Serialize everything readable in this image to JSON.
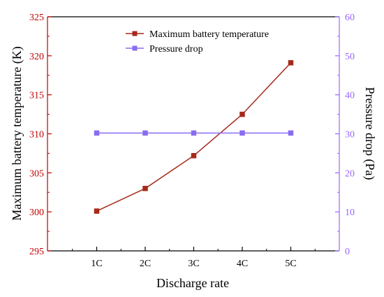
{
  "colors": {
    "left_axis": "#c00000",
    "right_axis": "#9966ff",
    "series_temp": "#a52a1a",
    "series_pressure": "#8a6cf0",
    "text": "#000000"
  },
  "chart_data": {
    "type": "line",
    "xlabel": "Discharge rate",
    "categories": [
      "1C",
      "2C",
      "3C",
      "4C",
      "5C"
    ],
    "y_left": {
      "label": "Maximum battery temperature (K)",
      "lim": [
        295,
        325
      ],
      "ticks": [
        295,
        300,
        305,
        310,
        315,
        320,
        325
      ]
    },
    "y_right": {
      "label": "Pressure drop (Pa)",
      "lim": [
        0,
        60
      ],
      "ticks": [
        0,
        10,
        20,
        30,
        40,
        50,
        60
      ]
    },
    "series": [
      {
        "name": "Maximum battery temperature",
        "axis": "left",
        "marker": "square",
        "values": [
          300.1,
          303.0,
          307.2,
          312.5,
          319.1
        ]
      },
      {
        "name": "Pressure drop",
        "axis": "right",
        "marker": "square",
        "values": [
          30.2,
          30.2,
          30.2,
          30.2,
          30.2
        ]
      }
    ],
    "legend": "top-center",
    "grid": false
  }
}
